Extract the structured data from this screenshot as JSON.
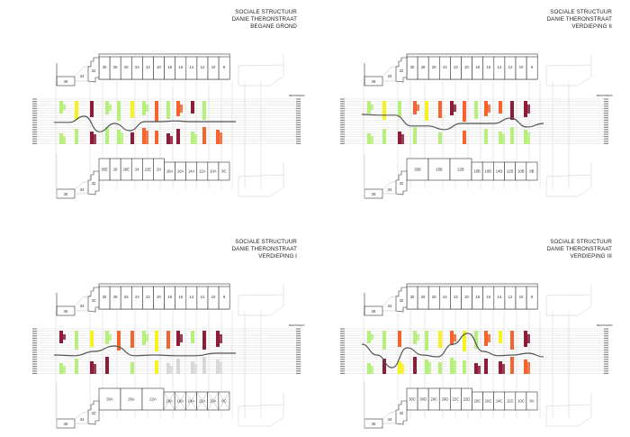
{
  "colors": {
    "green": "#b6f07a",
    "yellow": "#f6f21e",
    "orange": "#f5642e",
    "maroon": "#8c1c38",
    "grey": "#d8d8d8",
    "outline": "#333333",
    "curve": "#555555",
    "gridline": "#dddddd"
  },
  "legend_tag": "BEWONERS",
  "panels": [
    {
      "id": "begane-grond",
      "title": [
        "SOCIALE STRUCTUUR",
        "DANIE THERONSTRAAT",
        "BEGANE GROND"
      ],
      "top_units": [
        "30",
        "28",
        "26",
        "24",
        "22",
        "20",
        "18",
        "16",
        "14",
        "12",
        "10",
        "8"
      ],
      "bottom_units": [
        "30E",
        "28",
        "26E",
        "24",
        "22E",
        "20",
        "18A",
        "16A",
        "14A",
        "12A",
        "10A",
        "8C"
      ],
      "bottom_crossed": false,
      "side_units": [
        "36",
        "34",
        "32"
      ],
      "curve": [
        0.52,
        0.52,
        0.35,
        0.78,
        0.55,
        0.75,
        0.5,
        0.5,
        0.48,
        0.5,
        0.5,
        0.5,
        0.5
      ],
      "columns": [
        {
          "upper": "green",
          "lower": "green"
        },
        {
          "upper": "yellow",
          "lower": "green"
        },
        {
          "upper": "maroon",
          "lower": "maroon"
        },
        {
          "upper": "green",
          "lower": "green"
        },
        {
          "upper": "green",
          "lower": "green"
        },
        {
          "upper": "yellow",
          "lower": "maroon"
        },
        {
          "upper": "green",
          "lower": "orange"
        },
        {
          "upper": "orange",
          "lower": "orange"
        },
        {
          "upper": "green",
          "lower": "maroon"
        },
        {
          "upper": "orange",
          "lower": "maroon"
        },
        {
          "upper": "maroon",
          "lower": "green"
        },
        {
          "upper": "green",
          "lower": "orange"
        },
        {
          "upper": "none",
          "lower": "orange"
        }
      ]
    },
    {
      "id": "verdieping-ii",
      "title": [
        "SOCIALE STRUCTUUR",
        "DANIE THERONSTRAAT",
        "VERDIEPING II"
      ],
      "top_units": [
        "30",
        "28",
        "26",
        "24",
        "22",
        "20",
        "18",
        "16",
        "14",
        "12",
        "10",
        "8"
      ],
      "bottom_units": [
        "30B",
        "26B",
        "22B",
        "18B",
        "16B",
        "14B",
        "12B",
        "10B",
        "8B"
      ],
      "bottom_crossed": false,
      "side_units": [
        "36",
        "34",
        "32"
      ],
      "curve": [
        0.3,
        0.32,
        0.32,
        0.62,
        0.62,
        0.72,
        0.55,
        0.55,
        0.55,
        0.4,
        0.65,
        0.55
      ],
      "columns": [
        {
          "upper": "green",
          "lower": "green"
        },
        {
          "upper": "yellow",
          "lower": "green"
        },
        {
          "upper": "green",
          "lower": "maroon"
        },
        {
          "upper": "orange",
          "lower": "green"
        },
        {
          "upper": "yellow",
          "lower": "none"
        },
        {
          "upper": "orange",
          "lower": "green"
        },
        {
          "upper": "maroon",
          "lower": "none"
        },
        {
          "upper": "orange",
          "lower": "orange"
        },
        {
          "upper": "green",
          "lower": "none"
        },
        {
          "upper": "orange",
          "lower": "green"
        },
        {
          "upper": "orange",
          "lower": "green"
        },
        {
          "upper": "maroon",
          "lower": "green"
        },
        {
          "upper": "maroon",
          "lower": "green"
        }
      ]
    },
    {
      "id": "verdieping-i",
      "title": [
        "SOCIALE STRUCTUUR",
        "DANIE THERONSTRAAT",
        "VERDIEPING I"
      ],
      "top_units": [
        "30",
        "28",
        "26",
        "24",
        "22",
        "20",
        "18",
        "16",
        "14",
        "12",
        "10",
        "8"
      ],
      "bottom_units": [
        "30A",
        "26A",
        "22A",
        "18A",
        "18A",
        "14A",
        "12A",
        "10A",
        "8C"
      ],
      "bottom_crossed": true,
      "side_units": [
        "36",
        "34",
        "32"
      ],
      "curve": [
        0.6,
        0.62,
        0.5,
        0.35,
        0.62,
        0.6,
        0.62,
        0.62,
        0.55,
        0.55
      ],
      "columns": [
        {
          "upper": "maroon",
          "lower": "green"
        },
        {
          "upper": "green",
          "lower": "green"
        },
        {
          "upper": "yellow",
          "lower": "maroon"
        },
        {
          "upper": "green",
          "lower": "maroon"
        },
        {
          "upper": "orange",
          "lower": "none"
        },
        {
          "upper": "orange",
          "lower": "green"
        },
        {
          "upper": "green",
          "lower": "none"
        },
        {
          "upper": "yellow",
          "lower": "yellow"
        },
        {
          "upper": "orange",
          "lower": "grey"
        },
        {
          "upper": "maroon",
          "lower": "grey"
        },
        {
          "upper": "green",
          "lower": "grey"
        },
        {
          "upper": "maroon",
          "lower": "grey"
        },
        {
          "upper": "maroon",
          "lower": "grey"
        }
      ]
    },
    {
      "id": "verdieping-iii",
      "title": [
        "SOCIALE STRUCTUUR",
        "DANIE THERONSTRAAT",
        "VERDIEPING III"
      ],
      "top_units": [
        "30",
        "28",
        "26",
        "24",
        "22",
        "20",
        "18",
        "16",
        "14",
        "12",
        "10",
        "8"
      ],
      "bottom_units": [
        "30C",
        "30D",
        "26C",
        "26D",
        "22C",
        "22D",
        "18C",
        "16C",
        "14C",
        "12C",
        "10C",
        "8A"
      ],
      "bottom_crossed": false,
      "side_units": [
        "36",
        "34",
        "32"
      ],
      "curve": [
        0.3,
        0.6,
        0.95,
        0.4,
        0.6,
        0.65,
        0.3,
        0.0,
        0.5,
        0.62,
        0.6,
        0.55,
        0.65
      ],
      "columns": [
        {
          "upper": "green",
          "lower": "green"
        },
        {
          "upper": "green",
          "lower": "maroon"
        },
        {
          "upper": "orange",
          "lower": "yellow"
        },
        {
          "upper": "green",
          "lower": "maroon"
        },
        {
          "upper": "green",
          "lower": "green"
        },
        {
          "upper": "yellow",
          "lower": "green"
        },
        {
          "upper": "orange",
          "lower": "green"
        },
        {
          "upper": "yellow",
          "lower": "green"
        },
        {
          "upper": "green",
          "lower": "maroon"
        },
        {
          "upper": "orange",
          "lower": "maroon"
        },
        {
          "upper": "yellow",
          "lower": "maroon"
        },
        {
          "upper": "orange",
          "lower": "orange"
        },
        {
          "upper": "maroon",
          "lower": "orange"
        }
      ]
    }
  ]
}
